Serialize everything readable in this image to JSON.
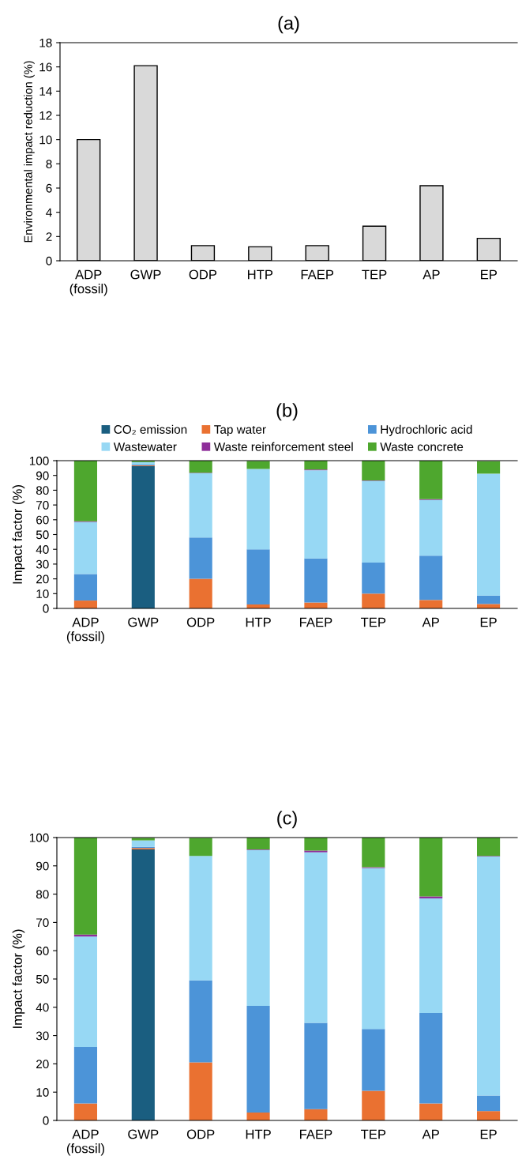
{
  "chart_data": [
    {
      "type": "bar",
      "title": "(a)",
      "ylabel": "Environmental impact reduction (%)",
      "categories": [
        "ADP\n(fossil)",
        "GWP",
        "ODP",
        "HTP",
        "FAEP",
        "TEP",
        "AP",
        "EP"
      ],
      "values": [
        10,
        16.1,
        1.25,
        1.15,
        1.25,
        2.85,
        6.2,
        1.85
      ],
      "color": "#d9d9d9",
      "ylim": [
        0,
        18
      ],
      "yticks": [
        0,
        2,
        4,
        6,
        8,
        10,
        12,
        14,
        16,
        18
      ],
      "grid": false,
      "legend": false
    },
    {
      "type": "bar",
      "title": "(b)",
      "ylabel": "Impact factor (%)",
      "stacked": true,
      "categories": [
        "ADP\n(fossil)",
        "GWP",
        "ODP",
        "HTP",
        "FAEP",
        "TEP",
        "AP",
        "EP"
      ],
      "ylim": [
        0,
        100
      ],
      "yticks": [
        0,
        10,
        20,
        30,
        40,
        50,
        60,
        70,
        80,
        90,
        100
      ],
      "grid": false,
      "legend": "top",
      "series": [
        {
          "name": "CO₂ emission",
          "color": "#1a5e80",
          "values": [
            0,
            96.3,
            0,
            0,
            0,
            0,
            0,
            0
          ]
        },
        {
          "name": "Tap water",
          "color": "#ea7131",
          "values": [
            5.3,
            0.5,
            20,
            2.7,
            4,
            10,
            5.7,
            3
          ]
        },
        {
          "name": "Hydrochloric acid",
          "color": "#4c94d8",
          "values": [
            18,
            0.5,
            28,
            37.3,
            29.8,
            21,
            30,
            5.7
          ]
        },
        {
          "name": "Wastewater",
          "color": "#97d8f4",
          "values": [
            35.2,
            1.7,
            43.5,
            54.4,
            59.7,
            55.3,
            37.7,
            82.5
          ]
        },
        {
          "name": "Waste reinforcement steel",
          "color": "#8e2e9a",
          "values": [
            0.5,
            null,
            0.3,
            null,
            0.5,
            0.3,
            0.5,
            null
          ]
        },
        {
          "name": "Waste concrete",
          "color": "#4ea72e",
          "values": [
            41,
            0.9,
            8.2,
            5.4,
            6,
            13.4,
            26.1,
            8.5
          ]
        }
      ]
    },
    {
      "type": "bar",
      "title": "(c)",
      "ylabel": "Impact factor (%)",
      "stacked": true,
      "categories": [
        "ADP\n(fossil)",
        "GWP",
        "ODP",
        "HTP",
        "FAEP",
        "TEP",
        "AP",
        "EP"
      ],
      "ylim": [
        0,
        100
      ],
      "yticks": [
        0,
        10,
        20,
        30,
        40,
        50,
        60,
        70,
        80,
        90,
        100
      ],
      "grid": false,
      "legend": false,
      "series": [
        {
          "color": "#1a5e80",
          "values": [
            0,
            95.8,
            0,
            0,
            0,
            0,
            0,
            0
          ]
        },
        {
          "color": "#ea7131",
          "values": [
            6,
            0.5,
            20.5,
            2.8,
            4,
            10.5,
            6,
            3.3
          ]
        },
        {
          "color": "#4c94d8",
          "values": [
            20,
            0.4,
            29,
            37.7,
            30.5,
            21.8,
            32,
            5.5
          ]
        },
        {
          "color": "#97d8f4",
          "values": [
            39,
            2.3,
            44,
            55.1,
            60.3,
            56.9,
            40.5,
            84.5
          ]
        },
        {
          "color": "#8e2e9a",
          "values": [
            0.7,
            null,
            null,
            0.2,
            0.6,
            0.3,
            0.7,
            0.2
          ]
        },
        {
          "color": "#4ea72e",
          "values": [
            34.3,
            0.9,
            6.4,
            4.2,
            4.6,
            10.5,
            20.8,
            6.5
          ]
        }
      ]
    }
  ]
}
